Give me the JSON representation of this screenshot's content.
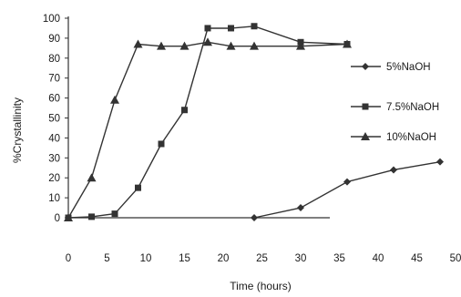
{
  "chart_data": {
    "type": "line",
    "title": "",
    "xlabel": "Time (hours)",
    "ylabel": "%Crystallinity",
    "xlim": [
      0,
      50
    ],
    "ylim": [
      0,
      100
    ],
    "x_ticks": [
      "0",
      "5",
      "10",
      "15",
      "20",
      "25",
      "30",
      "35",
      "40",
      "45",
      "50"
    ],
    "y_ticks": [
      "0",
      "10",
      "20",
      "30",
      "40",
      "50",
      "60",
      "70",
      "80",
      "90",
      "100"
    ],
    "grid": false,
    "legend_position": "right",
    "series": [
      {
        "name": "5%NaOH",
        "marker": "diamond",
        "color": "#333333",
        "points": [
          [
            24,
            0
          ],
          [
            30,
            5
          ],
          [
            36,
            18
          ],
          [
            42,
            24
          ],
          [
            48,
            28
          ]
        ]
      },
      {
        "name": "7.5%NaOH",
        "marker": "square",
        "color": "#333333",
        "points": [
          [
            0,
            0
          ],
          [
            3,
            0.5
          ],
          [
            6,
            2
          ],
          [
            9,
            15
          ],
          [
            12,
            37
          ],
          [
            15,
            54
          ],
          [
            18,
            95
          ],
          [
            21,
            95
          ],
          [
            24,
            96
          ],
          [
            30,
            88
          ],
          [
            36,
            87
          ]
        ]
      },
      {
        "name": "10%NaOH",
        "marker": "triangle",
        "color": "#333333",
        "points": [
          [
            0,
            0
          ],
          [
            3,
            20
          ],
          [
            6,
            59
          ],
          [
            9,
            87
          ],
          [
            12,
            86
          ],
          [
            15,
            86
          ],
          [
            18,
            88
          ],
          [
            21,
            86
          ],
          [
            24,
            86
          ],
          [
            30,
            86
          ],
          [
            36,
            87
          ]
        ]
      }
    ]
  }
}
